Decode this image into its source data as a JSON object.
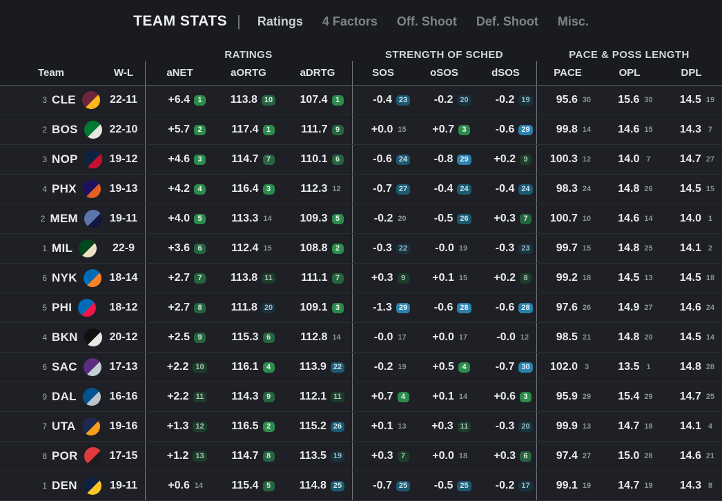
{
  "theme": {
    "page_bg": "#191b1f",
    "row_bg": "#1e2025",
    "divider": "#73777d",
    "green_strong": "#2c8c4c",
    "green_mid": "#256540",
    "green_faint": "#1d3d2b",
    "blue_strong": "#2a81ac",
    "blue_mid": "#1c5a72",
    "blue_faint": "#17333f"
  },
  "nav": {
    "title": "TEAM STATS",
    "divider": "|",
    "tabs": [
      {
        "label": "Ratings",
        "active": true
      },
      {
        "label": "4 Factors",
        "active": false
      },
      {
        "label": "Off. Shoot",
        "active": false
      },
      {
        "label": "Def. Shoot",
        "active": false
      },
      {
        "label": "Misc.",
        "active": false
      }
    ]
  },
  "table": {
    "groups": [
      "RATINGS",
      "STRENGTH OF SCHED",
      "PACE & POSS LENGTH"
    ],
    "columns": [
      "Team",
      "W-L",
      "aNET",
      "aORTG",
      "aDRTG",
      "SOS",
      "oSOS",
      "dSOS",
      "PACE",
      "OPL",
      "DPL"
    ],
    "rows": [
      {
        "seed": "3",
        "team": "CLE",
        "record": "22-11",
        "logo": [
          "#6f263d",
          "#ffb81c"
        ],
        "stats": [
          {
            "v": "+6.4",
            "r": "1",
            "t": "g3"
          },
          {
            "v": "113.8",
            "r": "10",
            "t": "g2"
          },
          {
            "v": "107.4",
            "r": "1",
            "t": "g3"
          },
          {
            "v": "-0.4",
            "r": "23",
            "t": "b2"
          },
          {
            "v": "-0.2",
            "r": "20",
            "t": "b1"
          },
          {
            "v": "-0.2",
            "r": "19",
            "t": "b1"
          },
          {
            "v": "95.6",
            "r": "30",
            "t": "n"
          },
          {
            "v": "15.6",
            "r": "30",
            "t": "n"
          },
          {
            "v": "14.5",
            "r": "19",
            "t": "n"
          }
        ]
      },
      {
        "seed": "2",
        "team": "BOS",
        "record": "22-10",
        "logo": [
          "#007a33",
          "#e8e6df"
        ],
        "stats": [
          {
            "v": "+5.7",
            "r": "2",
            "t": "g3"
          },
          {
            "v": "117.4",
            "r": "1",
            "t": "g3"
          },
          {
            "v": "111.7",
            "r": "9",
            "t": "g2"
          },
          {
            "v": "+0.0",
            "r": "15",
            "t": "n"
          },
          {
            "v": "+0.7",
            "r": "3",
            "t": "g3"
          },
          {
            "v": "-0.6",
            "r": "29",
            "t": "b3"
          },
          {
            "v": "99.8",
            "r": "14",
            "t": "n"
          },
          {
            "v": "14.6",
            "r": "15",
            "t": "n"
          },
          {
            "v": "14.3",
            "r": "7",
            "t": "n"
          }
        ]
      },
      {
        "seed": "3",
        "team": "NOP",
        "record": "19-12",
        "logo": [
          "#0c2340",
          "#c8102e"
        ],
        "stats": [
          {
            "v": "+4.6",
            "r": "3",
            "t": "g3"
          },
          {
            "v": "114.7",
            "r": "7",
            "t": "g2"
          },
          {
            "v": "110.1",
            "r": "6",
            "t": "g2"
          },
          {
            "v": "-0.6",
            "r": "24",
            "t": "b2"
          },
          {
            "v": "-0.8",
            "r": "29",
            "t": "b3"
          },
          {
            "v": "+0.2",
            "r": "9",
            "t": "g1"
          },
          {
            "v": "100.3",
            "r": "12",
            "t": "n"
          },
          {
            "v": "14.0",
            "r": "7",
            "t": "n"
          },
          {
            "v": "14.7",
            "r": "27",
            "t": "n"
          }
        ]
      },
      {
        "seed": "4",
        "team": "PHX",
        "record": "19-13",
        "logo": [
          "#1d1160",
          "#e56020"
        ],
        "stats": [
          {
            "v": "+4.2",
            "r": "4",
            "t": "g3"
          },
          {
            "v": "116.4",
            "r": "3",
            "t": "g3"
          },
          {
            "v": "112.3",
            "r": "12",
            "t": "n"
          },
          {
            "v": "-0.7",
            "r": "27",
            "t": "b2"
          },
          {
            "v": "-0.4",
            "r": "24",
            "t": "b2"
          },
          {
            "v": "-0.4",
            "r": "24",
            "t": "b2"
          },
          {
            "v": "98.3",
            "r": "24",
            "t": "n"
          },
          {
            "v": "14.8",
            "r": "26",
            "t": "n"
          },
          {
            "v": "14.5",
            "r": "15",
            "t": "n"
          }
        ]
      },
      {
        "seed": "2",
        "team": "MEM",
        "record": "19-11",
        "logo": [
          "#5d76a9",
          "#12173f"
        ],
        "stats": [
          {
            "v": "+4.0",
            "r": "5",
            "t": "g3"
          },
          {
            "v": "113.3",
            "r": "14",
            "t": "n"
          },
          {
            "v": "109.3",
            "r": "5",
            "t": "g3"
          },
          {
            "v": "-0.2",
            "r": "20",
            "t": "n"
          },
          {
            "v": "-0.5",
            "r": "26",
            "t": "b2"
          },
          {
            "v": "+0.3",
            "r": "7",
            "t": "g2"
          },
          {
            "v": "100.7",
            "r": "10",
            "t": "n"
          },
          {
            "v": "14.6",
            "r": "14",
            "t": "n"
          },
          {
            "v": "14.0",
            "r": "1",
            "t": "n"
          }
        ]
      },
      {
        "seed": "1",
        "team": "MIL",
        "record": "22-9",
        "logo": [
          "#00471b",
          "#eee1c6"
        ],
        "stats": [
          {
            "v": "+3.6",
            "r": "6",
            "t": "g2"
          },
          {
            "v": "112.4",
            "r": "15",
            "t": "n"
          },
          {
            "v": "108.8",
            "r": "2",
            "t": "g3"
          },
          {
            "v": "-0.3",
            "r": "22",
            "t": "b1"
          },
          {
            "v": "-0.0",
            "r": "19",
            "t": "n"
          },
          {
            "v": "-0.3",
            "r": "23",
            "t": "b1"
          },
          {
            "v": "99.7",
            "r": "15",
            "t": "n"
          },
          {
            "v": "14.8",
            "r": "25",
            "t": "n"
          },
          {
            "v": "14.1",
            "r": "2",
            "t": "n"
          }
        ]
      },
      {
        "seed": "6",
        "team": "NYK",
        "record": "18-14",
        "logo": [
          "#006bb6",
          "#f58426"
        ],
        "stats": [
          {
            "v": "+2.7",
            "r": "7",
            "t": "g2"
          },
          {
            "v": "113.8",
            "r": "11",
            "t": "g1"
          },
          {
            "v": "111.1",
            "r": "7",
            "t": "g2"
          },
          {
            "v": "+0.3",
            "r": "9",
            "t": "g1"
          },
          {
            "v": "+0.1",
            "r": "15",
            "t": "n"
          },
          {
            "v": "+0.2",
            "r": "8",
            "t": "g1"
          },
          {
            "v": "99.2",
            "r": "18",
            "t": "n"
          },
          {
            "v": "14.5",
            "r": "13",
            "t": "n"
          },
          {
            "v": "14.5",
            "r": "18",
            "t": "n"
          }
        ]
      },
      {
        "seed": "5",
        "team": "PHI",
        "record": "18-12",
        "logo": [
          "#006bb6",
          "#ed174c"
        ],
        "stats": [
          {
            "v": "+2.7",
            "r": "8",
            "t": "g2"
          },
          {
            "v": "111.8",
            "r": "20",
            "t": "b1"
          },
          {
            "v": "109.1",
            "r": "3",
            "t": "g3"
          },
          {
            "v": "-1.3",
            "r": "29",
            "t": "b3"
          },
          {
            "v": "-0.6",
            "r": "28",
            "t": "b3"
          },
          {
            "v": "-0.6",
            "r": "28",
            "t": "b3"
          },
          {
            "v": "97.6",
            "r": "26",
            "t": "n"
          },
          {
            "v": "14.9",
            "r": "27",
            "t": "n"
          },
          {
            "v": "14.6",
            "r": "24",
            "t": "n"
          }
        ]
      },
      {
        "seed": "4",
        "team": "BKN",
        "record": "20-12",
        "logo": [
          "#111111",
          "#e8e8e8"
        ],
        "stats": [
          {
            "v": "+2.5",
            "r": "9",
            "t": "g2"
          },
          {
            "v": "115.3",
            "r": "6",
            "t": "g2"
          },
          {
            "v": "112.8",
            "r": "14",
            "t": "n"
          },
          {
            "v": "-0.0",
            "r": "17",
            "t": "n"
          },
          {
            "v": "+0.0",
            "r": "17",
            "t": "n"
          },
          {
            "v": "-0.0",
            "r": "12",
            "t": "n"
          },
          {
            "v": "98.5",
            "r": "21",
            "t": "n"
          },
          {
            "v": "14.8",
            "r": "20",
            "t": "n"
          },
          {
            "v": "14.5",
            "r": "14",
            "t": "n"
          }
        ]
      },
      {
        "seed": "6",
        "team": "SAC",
        "record": "17-13",
        "logo": [
          "#5a2d81",
          "#c4ced4"
        ],
        "stats": [
          {
            "v": "+2.2",
            "r": "10",
            "t": "g1"
          },
          {
            "v": "116.1",
            "r": "4",
            "t": "g3"
          },
          {
            "v": "113.9",
            "r": "22",
            "t": "b2"
          },
          {
            "v": "-0.2",
            "r": "19",
            "t": "n"
          },
          {
            "v": "+0.5",
            "r": "4",
            "t": "g3"
          },
          {
            "v": "-0.7",
            "r": "30",
            "t": "b3"
          },
          {
            "v": "102.0",
            "r": "3",
            "t": "n"
          },
          {
            "v": "13.5",
            "r": "1",
            "t": "n"
          },
          {
            "v": "14.8",
            "r": "28",
            "t": "n"
          }
        ]
      },
      {
        "seed": "9",
        "team": "DAL",
        "record": "16-16",
        "logo": [
          "#00538c",
          "#bbc4ca"
        ],
        "stats": [
          {
            "v": "+2.2",
            "r": "11",
            "t": "g1"
          },
          {
            "v": "114.3",
            "r": "9",
            "t": "g2"
          },
          {
            "v": "112.1",
            "r": "11",
            "t": "g1"
          },
          {
            "v": "+0.7",
            "r": "4",
            "t": "g3"
          },
          {
            "v": "+0.1",
            "r": "14",
            "t": "n"
          },
          {
            "v": "+0.6",
            "r": "3",
            "t": "g3"
          },
          {
            "v": "95.9",
            "r": "29",
            "t": "n"
          },
          {
            "v": "15.4",
            "r": "29",
            "t": "n"
          },
          {
            "v": "14.7",
            "r": "25",
            "t": "n"
          }
        ]
      },
      {
        "seed": "7",
        "team": "UTA",
        "record": "19-16",
        "logo": [
          "#1d2951",
          "#f9a01b"
        ],
        "stats": [
          {
            "v": "+1.3",
            "r": "12",
            "t": "g1"
          },
          {
            "v": "116.5",
            "r": "2",
            "t": "g3"
          },
          {
            "v": "115.2",
            "r": "26",
            "t": "b2"
          },
          {
            "v": "+0.1",
            "r": "13",
            "t": "n"
          },
          {
            "v": "+0.3",
            "r": "11",
            "t": "g1"
          },
          {
            "v": "-0.3",
            "r": "20",
            "t": "b1"
          },
          {
            "v": "99.9",
            "r": "13",
            "t": "n"
          },
          {
            "v": "14.7",
            "r": "18",
            "t": "n"
          },
          {
            "v": "14.1",
            "r": "4",
            "t": "n"
          }
        ]
      },
      {
        "seed": "8",
        "team": "POR",
        "record": "17-15",
        "logo": [
          "#e03a3e",
          "#1c1c1c"
        ],
        "stats": [
          {
            "v": "+1.2",
            "r": "13",
            "t": "g1"
          },
          {
            "v": "114.7",
            "r": "8",
            "t": "g2"
          },
          {
            "v": "113.5",
            "r": "19",
            "t": "b1"
          },
          {
            "v": "+0.3",
            "r": "7",
            "t": "g1"
          },
          {
            "v": "+0.0",
            "r": "18",
            "t": "n"
          },
          {
            "v": "+0.3",
            "r": "6",
            "t": "g2"
          },
          {
            "v": "97.4",
            "r": "27",
            "t": "n"
          },
          {
            "v": "15.0",
            "r": "28",
            "t": "n"
          },
          {
            "v": "14.6",
            "r": "21",
            "t": "n"
          }
        ]
      },
      {
        "seed": "1",
        "team": "DEN",
        "record": "19-11",
        "logo": [
          "#0e2240",
          "#fec524"
        ],
        "stats": [
          {
            "v": "+0.6",
            "r": "14",
            "t": "n"
          },
          {
            "v": "115.4",
            "r": "5",
            "t": "g2"
          },
          {
            "v": "114.8",
            "r": "25",
            "t": "b2"
          },
          {
            "v": "-0.7",
            "r": "25",
            "t": "b2"
          },
          {
            "v": "-0.5",
            "r": "25",
            "t": "b2"
          },
          {
            "v": "-0.2",
            "r": "17",
            "t": "b1"
          },
          {
            "v": "99.1",
            "r": "19",
            "t": "n"
          },
          {
            "v": "14.7",
            "r": "19",
            "t": "n"
          },
          {
            "v": "14.3",
            "r": "8",
            "t": "n"
          }
        ]
      }
    ]
  }
}
